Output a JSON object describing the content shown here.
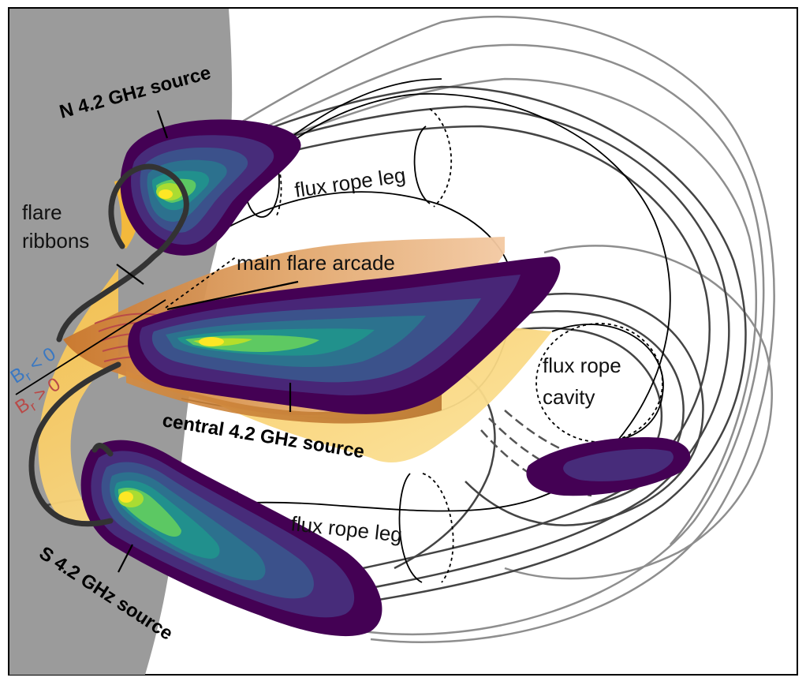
{
  "labels": {
    "n_source": "N 4.2 GHz source",
    "central_source": "central 4.2 GHz source",
    "s_source": "S 4.2 GHz source",
    "flare_ribbons_1": "flare",
    "flare_ribbons_2": "ribbons",
    "main_flare_arcade": "main flare arcade",
    "flux_rope_leg_top": "flux rope leg",
    "flux_rope_leg_bottom": "flux rope leg",
    "flux_rope_cavity_1": "flux rope",
    "flux_rope_cavity_2": "cavity",
    "br_neg_base": "B",
    "br_neg_sub": "r",
    "br_neg_rel": " < 0",
    "br_pos_base": "B",
    "br_pos_sub": "r",
    "br_pos_rel": " > 0"
  },
  "colors": {
    "limb": "#9b9b9b",
    "viridis": [
      "#440154",
      "#472c7a",
      "#3b518b",
      "#2c718e",
      "#21908d",
      "#27ad81",
      "#5cc863",
      "#aadc32",
      "#fde725"
    ],
    "br_negative": "#3a78c2",
    "br_positive": "#b94a48",
    "arcade": "#d9944a",
    "ribbon_fill": "#f6c242"
  }
}
